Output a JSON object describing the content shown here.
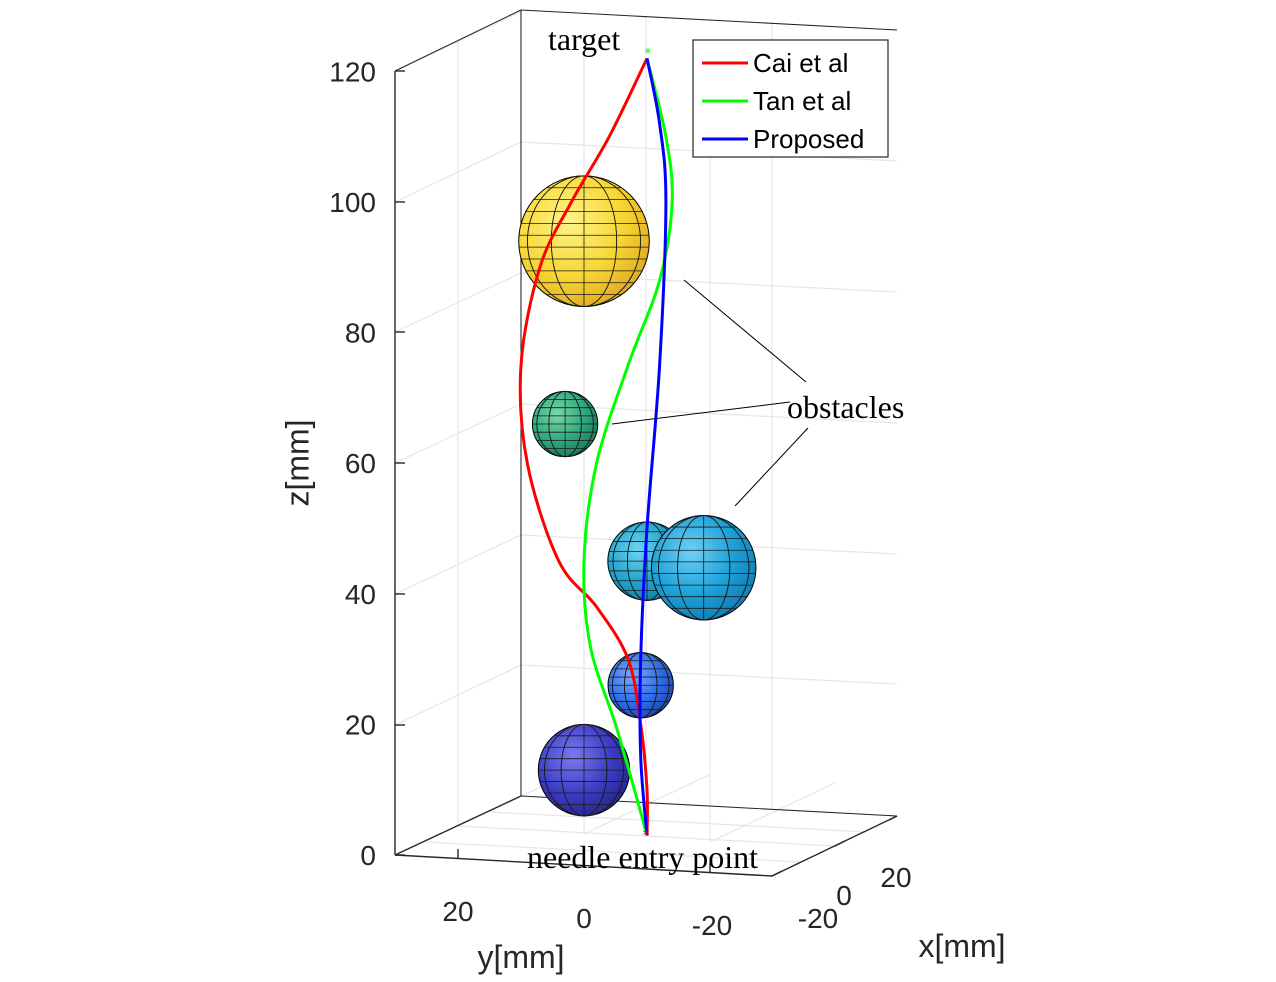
{
  "chart_data": {
    "type": "line3d",
    "xlabel": "x[mm]",
    "ylabel": "y[mm]",
    "zlabel": "z[mm]",
    "x_ticks": [
      "-20",
      "0",
      "20"
    ],
    "y_ticks": [
      "20",
      "0",
      "-20"
    ],
    "z_ticks": [
      "0",
      "20",
      "40",
      "60",
      "80",
      "100",
      "120"
    ],
    "zlim": [
      0,
      120
    ],
    "grid": true,
    "legend_position": "top-right",
    "series": [
      {
        "name": "Cai et al",
        "color": "#ff0000",
        "points": [
          [
            0,
            -10,
            3
          ],
          [
            0,
            -10,
            10
          ],
          [
            0,
            -9,
            20
          ],
          [
            0,
            -7,
            30
          ],
          [
            0,
            -2,
            38
          ],
          [
            0,
            4,
            45
          ],
          [
            0,
            9,
            60
          ],
          [
            0,
            10,
            75
          ],
          [
            0,
            7,
            90
          ],
          [
            0,
            2,
            100
          ],
          [
            0,
            -4,
            110
          ],
          [
            0,
            -10,
            122
          ]
        ]
      },
      {
        "name": "Tan et al",
        "color": "#00ff00",
        "points": [
          [
            0,
            -10,
            3
          ],
          [
            0,
            -8,
            10
          ],
          [
            0,
            -5,
            20
          ],
          [
            0,
            -1,
            32
          ],
          [
            0,
            0,
            45
          ],
          [
            0,
            -2,
            60
          ],
          [
            0,
            -7,
            75
          ],
          [
            0,
            -12,
            88
          ],
          [
            0,
            -14,
            100
          ],
          [
            0,
            -13,
            110
          ],
          [
            0,
            -10,
            122
          ]
        ]
      },
      {
        "name": "Proposed",
        "color": "#0000ff",
        "points": [
          [
            0,
            -10,
            3
          ],
          [
            0,
            -9,
            15
          ],
          [
            0,
            -9,
            30
          ],
          [
            0,
            -10,
            50
          ],
          [
            0,
            -12,
            75
          ],
          [
            0,
            -13,
            100
          ],
          [
            0,
            -12,
            112
          ],
          [
            0,
            -10,
            122
          ]
        ]
      }
    ],
    "obstacles": [
      {
        "center": [
          0,
          0,
          94
        ],
        "radius": 10,
        "color": "#f9e03b"
      },
      {
        "center": [
          0,
          3,
          66
        ],
        "radius": 5,
        "color": "#2ea77d"
      },
      {
        "center": [
          0,
          -10,
          45
        ],
        "radius": 6,
        "color": "#1fa3cc"
      },
      {
        "center": [
          0,
          -19,
          44
        ],
        "radius": 8,
        "color": "#1aa0d8"
      },
      {
        "center": [
          0,
          -9,
          26
        ],
        "radius": 5,
        "color": "#2f6ee8"
      },
      {
        "center": [
          0,
          0,
          13
        ],
        "radius": 7,
        "color": "#3c3cc4"
      }
    ],
    "annotations": {
      "target": "target",
      "obstacles": "obstacles",
      "entry": "needle entry point"
    }
  }
}
